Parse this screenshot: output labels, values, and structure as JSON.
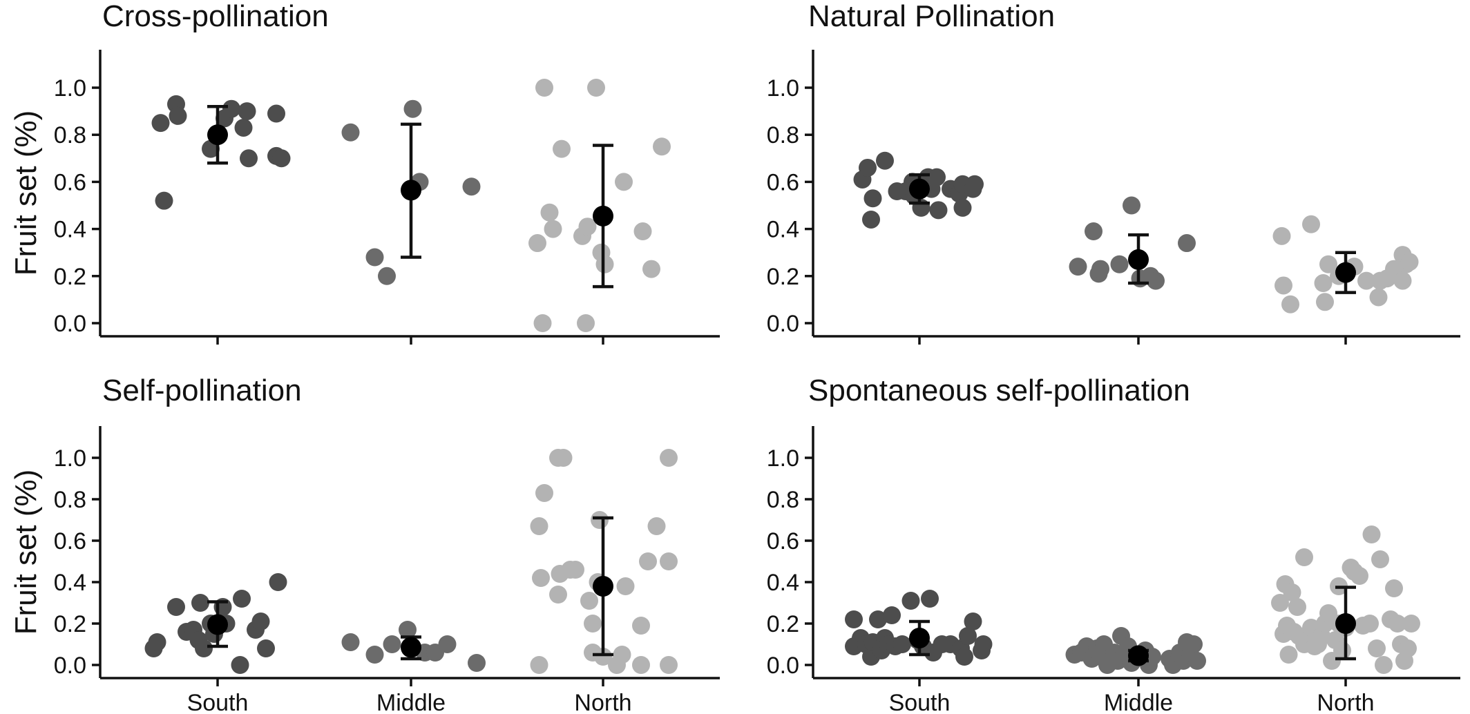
{
  "colors": {
    "South": "#4d4d4d",
    "Middle": "#6b6b6b",
    "North": "#b3b3b3",
    "mean": "#000000",
    "axis": "#111111"
  },
  "chart_data": [
    {
      "type": "scatter",
      "title": "Cross-pollination",
      "ylabel": "Fruit set (%)",
      "xlabel": "",
      "categories": [
        "South",
        "Middle",
        "North"
      ],
      "yticks": [
        "0.0",
        "0.2",
        "0.4",
        "0.6",
        "0.8",
        "1.0"
      ],
      "ylim": [
        -0.05,
        1.15
      ],
      "grid": false,
      "show_x_labels": false,
      "groups": [
        {
          "name": "South",
          "mean": 0.8,
          "lower": 0.68,
          "upper": 0.92,
          "points": [
            [
              -0.33,
              0.85
            ],
            [
              -0.31,
              0.52
            ],
            [
              -0.24,
              0.93
            ],
            [
              -0.23,
              0.88
            ],
            [
              -0.04,
              0.74
            ],
            [
              0.04,
              0.87
            ],
            [
              0.08,
              0.91
            ],
            [
              0.15,
              0.83
            ],
            [
              0.17,
              0.9
            ],
            [
              0.18,
              0.7
            ],
            [
              0.34,
              0.89
            ],
            [
              0.34,
              0.71
            ],
            [
              0.37,
              0.7
            ]
          ]
        },
        {
          "name": "Middle",
          "mean": 0.565,
          "lower": 0.28,
          "upper": 0.845,
          "points": [
            [
              -0.35,
              0.81
            ],
            [
              -0.21,
              0.28
            ],
            [
              -0.14,
              0.2
            ],
            [
              0.01,
              0.91
            ],
            [
              0.05,
              0.6
            ],
            [
              0.35,
              0.58
            ]
          ]
        },
        {
          "name": "North",
          "mean": 0.455,
          "lower": 0.155,
          "upper": 0.755,
          "points": [
            [
              -0.38,
              0.34
            ],
            [
              -0.35,
              0.0
            ],
            [
              -0.34,
              1.0
            ],
            [
              -0.31,
              0.47
            ],
            [
              -0.29,
              0.4
            ],
            [
              -0.24,
              0.74
            ],
            [
              -0.12,
              0.37
            ],
            [
              -0.09,
              0.41
            ],
            [
              -0.1,
              0.0
            ],
            [
              -0.04,
              1.0
            ],
            [
              -0.01,
              0.3
            ],
            [
              0.01,
              0.25
            ],
            [
              0.12,
              0.6
            ],
            [
              0.23,
              0.39
            ],
            [
              0.28,
              0.23
            ],
            [
              0.34,
              0.75
            ]
          ]
        }
      ]
    },
    {
      "type": "scatter",
      "title": "Natural Pollination",
      "ylabel": "",
      "xlabel": "",
      "categories": [
        "South",
        "Middle",
        "North"
      ],
      "yticks": [
        "0.0",
        "0.2",
        "0.4",
        "0.6",
        "0.8",
        "1.0"
      ],
      "ylim": [
        -0.05,
        1.15
      ],
      "grid": false,
      "show_x_labels": false,
      "groups": [
        {
          "name": "South",
          "mean": 0.57,
          "lower": 0.51,
          "upper": 0.63,
          "points": [
            [
              -0.33,
              0.61
            ],
            [
              -0.3,
              0.66
            ],
            [
              -0.27,
              0.53
            ],
            [
              -0.28,
              0.44
            ],
            [
              -0.2,
              0.69
            ],
            [
              -0.13,
              0.56
            ],
            [
              -0.08,
              0.56
            ],
            [
              -0.04,
              0.6
            ],
            [
              -0.03,
              0.54
            ],
            [
              0.01,
              0.49
            ],
            [
              0.05,
              0.62
            ],
            [
              0.07,
              0.57
            ],
            [
              0.1,
              0.62
            ],
            [
              0.11,
              0.48
            ],
            [
              0.18,
              0.57
            ],
            [
              0.23,
              0.55
            ],
            [
              0.25,
              0.49
            ],
            [
              0.25,
              0.59
            ],
            [
              0.31,
              0.57
            ],
            [
              0.32,
              0.59
            ]
          ]
        },
        {
          "name": "Middle",
          "mean": 0.27,
          "lower": 0.17,
          "upper": 0.375,
          "points": [
            [
              -0.35,
              0.24
            ],
            [
              -0.26,
              0.39
            ],
            [
              -0.23,
              0.21
            ],
            [
              -0.22,
              0.23
            ],
            [
              -0.11,
              0.25
            ],
            [
              -0.04,
              0.5
            ],
            [
              0.01,
              0.19
            ],
            [
              0.07,
              0.2
            ],
            [
              0.1,
              0.18
            ],
            [
              0.28,
              0.34
            ]
          ]
        },
        {
          "name": "North",
          "mean": 0.215,
          "lower": 0.13,
          "upper": 0.3,
          "points": [
            [
              -0.37,
              0.37
            ],
            [
              -0.36,
              0.16
            ],
            [
              -0.32,
              0.08
            ],
            [
              -0.2,
              0.42
            ],
            [
              -0.13,
              0.17
            ],
            [
              -0.12,
              0.09
            ],
            [
              -0.1,
              0.25
            ],
            [
              -0.04,
              0.2
            ],
            [
              0.05,
              0.24
            ],
            [
              0.12,
              0.18
            ],
            [
              0.19,
              0.11
            ],
            [
              0.2,
              0.18
            ],
            [
              0.24,
              0.19
            ],
            [
              0.28,
              0.23
            ],
            [
              0.33,
              0.29
            ],
            [
              0.35,
              0.25
            ],
            [
              0.33,
              0.18
            ],
            [
              0.37,
              0.26
            ]
          ]
        }
      ]
    },
    {
      "type": "scatter",
      "title": "Self-pollination",
      "ylabel": "Fruit set (%)",
      "xlabel": "",
      "categories": [
        "South",
        "Middle",
        "North"
      ],
      "yticks": [
        "0.0",
        "0.2",
        "0.4",
        "0.6",
        "0.8",
        "1.0"
      ],
      "ylim": [
        -0.05,
        1.15
      ],
      "grid": false,
      "show_x_labels": true,
      "groups": [
        {
          "name": "South",
          "mean": 0.195,
          "lower": 0.09,
          "upper": 0.305,
          "points": [
            [
              -0.37,
              0.08
            ],
            [
              -0.35,
              0.11
            ],
            [
              -0.24,
              0.28
            ],
            [
              -0.18,
              0.16
            ],
            [
              -0.14,
              0.17
            ],
            [
              -0.11,
              0.12
            ],
            [
              -0.1,
              0.3
            ],
            [
              -0.08,
              0.08
            ],
            [
              -0.04,
              0.2
            ],
            [
              -0.02,
              0.15
            ],
            [
              0.03,
              0.28
            ],
            [
              0.05,
              0.2
            ],
            [
              0.13,
              0.0
            ],
            [
              0.14,
              0.32
            ],
            [
              0.22,
              0.17
            ],
            [
              0.25,
              0.21
            ],
            [
              0.28,
              0.08
            ],
            [
              0.35,
              0.4
            ]
          ]
        },
        {
          "name": "Middle",
          "mean": 0.085,
          "lower": 0.03,
          "upper": 0.135,
          "points": [
            [
              -0.35,
              0.11
            ],
            [
              -0.21,
              0.05
            ],
            [
              -0.11,
              0.1
            ],
            [
              -0.02,
              0.17
            ],
            [
              0.08,
              0.06
            ],
            [
              0.14,
              0.06
            ],
            [
              0.21,
              0.1
            ],
            [
              0.38,
              0.01
            ]
          ]
        },
        {
          "name": "North",
          "mean": 0.38,
          "lower": 0.05,
          "upper": 0.71,
          "points": [
            [
              -0.37,
              0.0
            ],
            [
              -0.37,
              0.67
            ],
            [
              -0.36,
              0.42
            ],
            [
              -0.34,
              0.83
            ],
            [
              -0.26,
              1.0
            ],
            [
              -0.23,
              1.0
            ],
            [
              -0.26,
              0.34
            ],
            [
              -0.25,
              0.44
            ],
            [
              -0.19,
              0.46
            ],
            [
              -0.16,
              0.46
            ],
            [
              -0.08,
              0.31
            ],
            [
              -0.06,
              0.06
            ],
            [
              -0.06,
              0.2
            ],
            [
              -0.03,
              0.4
            ],
            [
              -0.02,
              0.7
            ],
            [
              0.0,
              0.04
            ],
            [
              0.08,
              0.0
            ],
            [
              0.11,
              0.05
            ],
            [
              0.13,
              0.38
            ],
            [
              0.22,
              0.19
            ],
            [
              0.22,
              0.0
            ],
            [
              0.26,
              0.5
            ],
            [
              0.31,
              0.67
            ],
            [
              0.38,
              1.0
            ],
            [
              0.38,
              0.5
            ],
            [
              0.38,
              0.0
            ]
          ]
        }
      ]
    },
    {
      "type": "scatter",
      "title": "Spontaneous self-pollination",
      "ylabel": "",
      "xlabel": "",
      "categories": [
        "South",
        "Middle",
        "North"
      ],
      "yticks": [
        "0.0",
        "0.2",
        "0.4",
        "0.6",
        "0.8",
        "1.0"
      ],
      "ylim": [
        -0.05,
        1.15
      ],
      "grid": false,
      "show_x_labels": true,
      "groups": [
        {
          "name": "South",
          "mean": 0.13,
          "lower": 0.05,
          "upper": 0.21,
          "points": [
            [
              -0.38,
              0.22
            ],
            [
              -0.38,
              0.09
            ],
            [
              -0.34,
              0.13
            ],
            [
              -0.31,
              0.1
            ],
            [
              -0.28,
              0.04
            ],
            [
              -0.27,
              0.11
            ],
            [
              -0.24,
              0.22
            ],
            [
              -0.22,
              0.07
            ],
            [
              -0.2,
              0.13
            ],
            [
              -0.18,
              0.1
            ],
            [
              -0.16,
              0.24
            ],
            [
              -0.14,
              0.09
            ],
            [
              -0.1,
              0.1
            ],
            [
              -0.05,
              0.31
            ],
            [
              -0.01,
              0.12
            ],
            [
              0.02,
              0.09
            ],
            [
              0.06,
              0.32
            ],
            [
              0.08,
              0.06
            ],
            [
              0.13,
              0.1
            ],
            [
              0.18,
              0.1
            ],
            [
              0.24,
              0.08
            ],
            [
              0.26,
              0.04
            ],
            [
              0.28,
              0.14
            ],
            [
              0.31,
              0.21
            ],
            [
              0.36,
              0.07
            ],
            [
              0.37,
              0.1
            ]
          ]
        },
        {
          "name": "Middle",
          "mean": 0.045,
          "lower": 0.02,
          "upper": 0.07,
          "points": [
            [
              -0.37,
              0.05
            ],
            [
              -0.33,
              0.06
            ],
            [
              -0.3,
              0.09
            ],
            [
              -0.27,
              0.03
            ],
            [
              -0.24,
              0.08
            ],
            [
              -0.22,
              0.04
            ],
            [
              -0.2,
              0.1
            ],
            [
              -0.18,
              0.0
            ],
            [
              -0.14,
              0.06
            ],
            [
              -0.12,
              0.02
            ],
            [
              -0.1,
              0.14
            ],
            [
              -0.08,
              0.05
            ],
            [
              -0.06,
              0.09
            ],
            [
              -0.04,
              0.01
            ],
            [
              0.0,
              0.04
            ],
            [
              0.04,
              0.07
            ],
            [
              0.06,
              0.0
            ],
            [
              0.08,
              0.04
            ],
            [
              0.18,
              0.03
            ],
            [
              0.2,
              0.0
            ],
            [
              0.24,
              0.06
            ],
            [
              0.26,
              0.02
            ],
            [
              0.28,
              0.11
            ],
            [
              0.3,
              0.05
            ],
            [
              0.32,
              0.1
            ],
            [
              0.34,
              0.02
            ]
          ]
        },
        {
          "name": "North",
          "mean": 0.2,
          "lower": 0.03,
          "upper": 0.375,
          "points": [
            [
              -0.38,
              0.3
            ],
            [
              -0.36,
              0.15
            ],
            [
              -0.35,
              0.39
            ],
            [
              -0.34,
              0.19
            ],
            [
              -0.33,
              0.05
            ],
            [
              -0.31,
              0.35
            ],
            [
              -0.3,
              0.16
            ],
            [
              -0.28,
              0.28
            ],
            [
              -0.27,
              0.14
            ],
            [
              -0.24,
              0.52
            ],
            [
              -0.24,
              0.1
            ],
            [
              -0.22,
              0.12
            ],
            [
              -0.2,
              0.18
            ],
            [
              -0.18,
              0.09
            ],
            [
              -0.16,
              0.1
            ],
            [
              -0.14,
              0.14
            ],
            [
              -0.12,
              0.2
            ],
            [
              -0.1,
              0.25
            ],
            [
              -0.08,
              0.02
            ],
            [
              -0.06,
              0.12
            ],
            [
              -0.04,
              0.38
            ],
            [
              -0.04,
              0.2
            ],
            [
              -0.02,
              0.07
            ],
            [
              0.0,
              0.18
            ],
            [
              0.03,
              0.47
            ],
            [
              0.05,
              0.45
            ],
            [
              0.08,
              0.43
            ],
            [
              0.1,
              0.19
            ],
            [
              0.14,
              0.2
            ],
            [
              0.15,
              0.63
            ],
            [
              0.18,
              0.08
            ],
            [
              0.2,
              0.51
            ],
            [
              0.22,
              0.0
            ],
            [
              0.26,
              0.22
            ],
            [
              0.28,
              0.37
            ],
            [
              0.3,
              0.2
            ],
            [
              0.32,
              0.1
            ],
            [
              0.34,
              0.02
            ],
            [
              0.36,
              0.08
            ],
            [
              0.38,
              0.2
            ]
          ]
        }
      ]
    }
  ]
}
